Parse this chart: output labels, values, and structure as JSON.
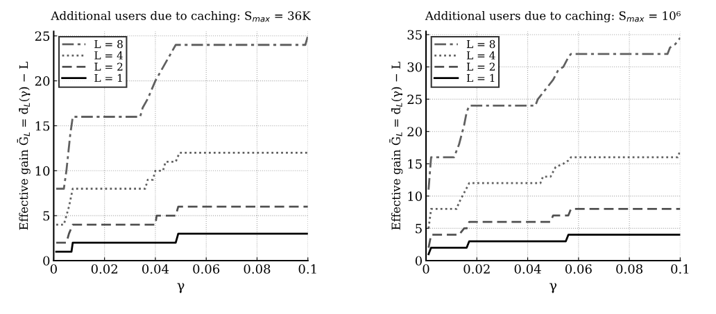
{
  "chart_data": [
    {
      "type": "line",
      "title": "Additional users due to caching: S$_{max}$ = 36K",
      "xlabel": "γ",
      "ylabel": "Effective gain Ḡ$_{L}$ = d̄$_{L}$(γ) − L",
      "xlim": [
        0,
        0.1
      ],
      "xticks": [
        0,
        0.02,
        0.04,
        0.06,
        0.08,
        0.1
      ],
      "ylim": [
        0,
        25.5
      ],
      "yticks": [
        0,
        5,
        10,
        15,
        20,
        25
      ],
      "grid": true,
      "legend": "top left",
      "series": [
        {
          "name": "L = 8",
          "color": "#606060",
          "line_style": "dashdot",
          "x": [
            0.001,
            0.004,
            0.005,
            0.0065,
            0.0075,
            0.034,
            0.035,
            0.037,
            0.0385,
            0.04,
            0.042,
            0.044,
            0.046,
            0.048,
            0.0495,
            0.099,
            0.1
          ],
          "values": [
            8,
            8,
            10,
            14,
            16,
            16,
            17,
            18,
            19,
            20,
            21,
            22,
            23,
            24,
            24,
            24,
            25
          ]
        },
        {
          "name": "L = 4",
          "color": "#606060",
          "line_style": "dotted",
          "x": [
            0.001,
            0.004,
            0.006,
            0.0075,
            0.036,
            0.037,
            0.039,
            0.04,
            0.043,
            0.044,
            0.048,
            0.0495,
            0.1
          ],
          "values": [
            4,
            4,
            6,
            8,
            8,
            9,
            9,
            10,
            10,
            11,
            11,
            12,
            12
          ]
        },
        {
          "name": "L = 2",
          "color": "#505050",
          "line_style": "dashed",
          "x": [
            0.001,
            0.005,
            0.006,
            0.0075,
            0.04,
            0.0405,
            0.048,
            0.049,
            0.1
          ],
          "values": [
            2,
            2,
            3,
            4,
            4,
            5,
            5,
            6,
            6
          ]
        },
        {
          "name": "L = 1",
          "color": "#000000",
          "line_style": "solid",
          "x": [
            0.001,
            0.007,
            0.0075,
            0.048,
            0.049,
            0.1
          ],
          "values": [
            1,
            1,
            2,
            2,
            3,
            3
          ]
        }
      ]
    },
    {
      "type": "line",
      "title": "Additional users due to caching: S$_{max}$ = 10⁶",
      "xlabel": "γ",
      "ylabel": "Effective gain Ḡ$_{L}$ = d̄$_{L}$(γ) − L",
      "xlim": [
        0,
        0.1
      ],
      "xticks": [
        0,
        0.02,
        0.04,
        0.06,
        0.08,
        0.1
      ],
      "ylim": [
        0,
        35.5
      ],
      "yticks": [
        0,
        5,
        10,
        15,
        20,
        25,
        30,
        35
      ],
      "grid": true,
      "legend": "top left",
      "series": [
        {
          "name": "L = 8",
          "color": "#606060",
          "line_style": "dashdot",
          "x": [
            0.001,
            0.002,
            0.011,
            0.013,
            0.015,
            0.016,
            0.017,
            0.043,
            0.044,
            0.046,
            0.048,
            0.05,
            0.052,
            0.054,
            0.056,
            0.057,
            0.095,
            0.096,
            0.098,
            0.1
          ],
          "values": [
            11,
            16,
            16,
            18,
            21,
            23,
            24,
            24,
            25,
            26,
            27,
            28,
            29.5,
            30,
            31.5,
            32,
            32,
            33,
            33.5,
            34.5
          ]
        },
        {
          "name": "L = 4",
          "color": "#606060",
          "line_style": "dotted",
          "x": [
            0.001,
            0.002,
            0.012,
            0.013,
            0.015,
            0.017,
            0.045,
            0.046,
            0.049,
            0.051,
            0.054,
            0.056,
            0.057,
            0.099,
            0.1
          ],
          "values": [
            5,
            8,
            8,
            9,
            10.5,
            12,
            12,
            13,
            13,
            14.5,
            15,
            15.5,
            16,
            16,
            17
          ]
        },
        {
          "name": "L = 2",
          "color": "#505050",
          "line_style": "dashed",
          "x": [
            0.001,
            0.002,
            0.013,
            0.015,
            0.016,
            0.017,
            0.049,
            0.05,
            0.056,
            0.057,
            0.1
          ],
          "values": [
            2,
            4,
            4,
            5,
            5,
            6,
            6,
            7,
            7,
            8,
            8
          ]
        },
        {
          "name": "L = 1",
          "color": "#000000",
          "line_style": "solid",
          "x": [
            0.001,
            0.002,
            0.016,
            0.017,
            0.055,
            0.056,
            0.1
          ],
          "values": [
            1,
            2,
            2,
            3,
            3,
            4,
            4
          ]
        }
      ]
    }
  ]
}
